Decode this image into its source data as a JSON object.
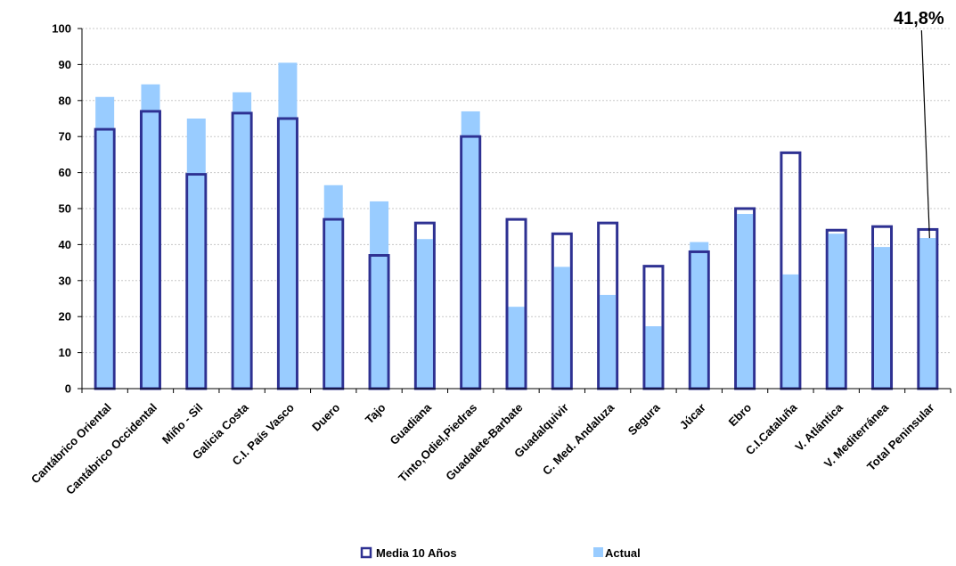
{
  "chart_data": {
    "type": "bar",
    "categories": [
      "Cantábrico Oriental",
      "Cantábrico Occidental",
      "Miño - Sil",
      "Galicia Costa",
      "C.I. País Vasco",
      "Duero",
      "Tajo",
      "Guadiana",
      "Tinto,Odiel,Piedras",
      "Guadalete-Barbate",
      "Guadalquivir",
      "C. Med. Andaluza",
      "Segura",
      "Júcar",
      "Ebro",
      "C.I.Cataluña",
      "V. Atlántica",
      "V. Mediterránea",
      "Total Peninsular"
    ],
    "series": [
      {
        "name": "Media 10 Años",
        "style": "outline",
        "color": "#2e3192",
        "values": [
          72,
          77,
          59.5,
          76.5,
          75,
          47,
          37,
          46,
          70,
          47,
          43,
          46,
          34,
          38,
          50,
          65.5,
          44,
          45,
          44.2
        ]
      },
      {
        "name": "Actual",
        "style": "fill",
        "color": "#99ccff",
        "values": [
          81,
          84.5,
          75,
          82.3,
          90.5,
          56.5,
          52,
          41.5,
          77,
          22.7,
          33.8,
          26,
          17.3,
          40.7,
          48.5,
          31.7,
          43,
          39.3,
          41.8
        ]
      }
    ],
    "ylim": [
      0,
      100
    ],
    "yticks": [
      "0",
      "10",
      "20",
      "30",
      "40",
      "50",
      "60",
      "70",
      "80",
      "90",
      "100"
    ],
    "grid": true,
    "legend_position": "bottom",
    "annotation": {
      "text": "41,8%",
      "category": "Total Peninsular"
    }
  }
}
